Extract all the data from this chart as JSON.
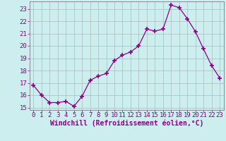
{
  "x": [
    0,
    1,
    2,
    3,
    4,
    5,
    6,
    7,
    8,
    9,
    10,
    11,
    12,
    13,
    14,
    15,
    16,
    17,
    18,
    19,
    20,
    21,
    22,
    23
  ],
  "y": [
    16.8,
    16.0,
    15.4,
    15.4,
    15.5,
    15.1,
    15.9,
    17.2,
    17.55,
    17.75,
    18.8,
    19.25,
    19.5,
    20.0,
    21.35,
    21.2,
    21.35,
    23.3,
    23.1,
    22.2,
    21.15,
    19.75,
    18.4,
    17.4
  ],
  "line_color": "#880088",
  "marker": "+",
  "marker_size": 4,
  "bg_color": "#cceeee",
  "grid_color": "#aabbbb",
  "xlabel": "Windchill (Refroidissement éolien,°C)",
  "ylabel": "",
  "ylim": [
    14.8,
    23.6
  ],
  "xlim": [
    -0.5,
    23.5
  ],
  "yticks": [
    15,
    16,
    17,
    18,
    19,
    20,
    21,
    22,
    23
  ],
  "xticks": [
    0,
    1,
    2,
    3,
    4,
    5,
    6,
    7,
    8,
    9,
    10,
    11,
    12,
    13,
    14,
    15,
    16,
    17,
    18,
    19,
    20,
    21,
    22,
    23
  ],
  "label_color": "#880088",
  "tick_color": "#880088",
  "font_size": 6.5,
  "xlabel_font_size": 7
}
